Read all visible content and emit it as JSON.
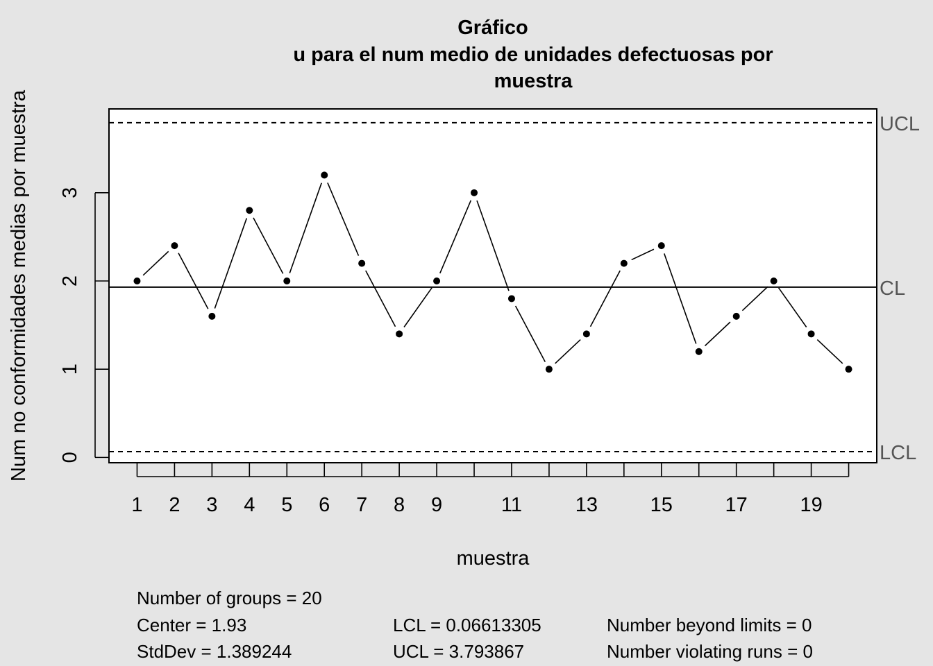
{
  "chart_data": {
    "type": "line",
    "title": [
      "Gráfico",
      "u para el num medio de unidades defectuosas por",
      "muestra"
    ],
    "xlabel": "muestra",
    "ylabel": "Num no conformidades medias por muestra",
    "x": [
      1,
      2,
      3,
      4,
      5,
      6,
      7,
      8,
      9,
      10,
      11,
      12,
      13,
      14,
      15,
      16,
      17,
      18,
      19,
      20
    ],
    "values": [
      2.0,
      2.4,
      1.6,
      2.8,
      2.0,
      3.2,
      2.2,
      1.4,
      2.0,
      3.0,
      1.8,
      1.0,
      1.4,
      2.2,
      2.4,
      1.2,
      1.6,
      2.0,
      1.4,
      1.0
    ],
    "x_ticks": [
      1,
      2,
      3,
      4,
      5,
      6,
      7,
      8,
      9,
      10,
      11,
      12,
      13,
      14,
      15,
      16,
      17,
      18,
      19,
      20
    ],
    "x_tick_labels": [
      "1",
      "2",
      "3",
      "4",
      "5",
      "6",
      "7",
      "8",
      "9",
      "",
      "11",
      "",
      "13",
      "",
      "15",
      "",
      "17",
      "",
      "19",
      ""
    ],
    "y_ticks": [
      0,
      1,
      2,
      3
    ],
    "y_tick_labels": [
      "0",
      "1",
      "2",
      "3"
    ],
    "xlim": [
      0.25,
      20.75
    ],
    "ylim": [
      -0.06,
      3.95
    ],
    "center_line": {
      "value": 1.93,
      "label": "CL"
    },
    "ucl_line": {
      "value": 3.793867,
      "label": "UCL"
    },
    "lcl_line": {
      "value": 0.06613305,
      "label": "LCL"
    },
    "grid": false
  },
  "stats": {
    "groups": "Number of groups = 20",
    "center": "Center = 1.93",
    "stddev": "StdDev = 1.389244",
    "lcl": "LCL = 0.06613305",
    "ucl": "UCL = 3.793867",
    "beyond": "Number beyond limits = 0",
    "violating": "Number violating runs = 0"
  }
}
